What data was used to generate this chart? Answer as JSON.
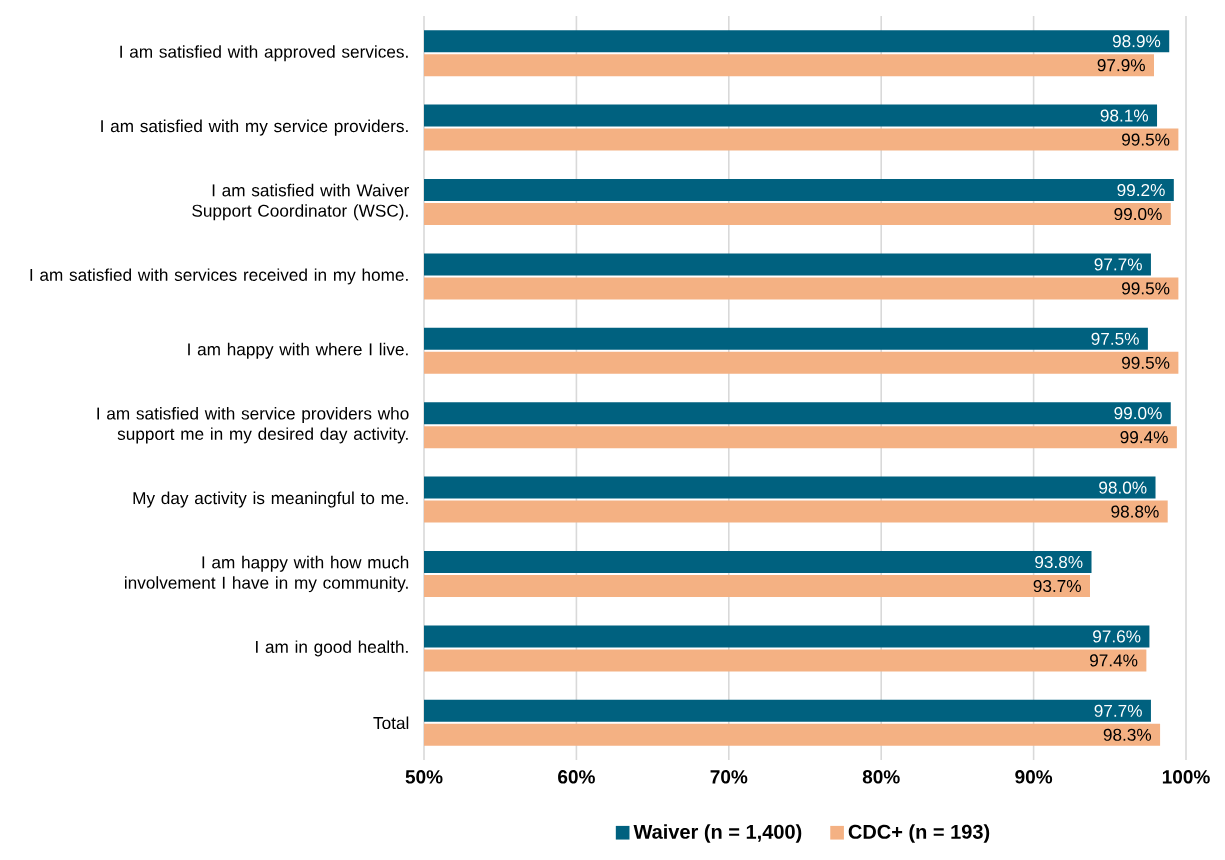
{
  "chart_data": {
    "type": "bar",
    "orientation": "horizontal",
    "categories": [
      "I am satisfied with approved services.",
      "I am satisfied with my service providers.",
      "I am satisfied with Waiver Support Coordinator (WSC).",
      "I am satisfied with services received in my home.",
      "I am happy with where I live.",
      "I am satisfied with service providers who support me in my desired day activity.",
      "My day activity is meaningful to me.",
      "I am happy with how much involvement I have in my community.",
      "I am in good health.",
      "Total"
    ],
    "series": [
      {
        "name": "Waiver (n = 1,400)",
        "color": "#00617f",
        "values": [
          98.9,
          98.1,
          99.2,
          97.7,
          97.5,
          99.0,
          98.0,
          93.8,
          97.6,
          97.7
        ],
        "value_labels": [
          "98.9%",
          "98.1%",
          "99.2%",
          "97.7%",
          "97.5%",
          "99.0%",
          "98.0%",
          "93.8%",
          "97.6%",
          "97.7%"
        ]
      },
      {
        "name": "CDC+ (n = 193)",
        "color": "#f4b183",
        "values": [
          97.9,
          99.5,
          99.0,
          99.5,
          99.5,
          99.4,
          98.8,
          93.7,
          97.4,
          98.3
        ],
        "value_labels": [
          "97.9%",
          "99.5%",
          "99.0%",
          "99.5%",
          "99.5%",
          "99.4%",
          "98.8%",
          "93.7%",
          "97.4%",
          "98.3%"
        ]
      }
    ],
    "xlim": [
      50,
      100
    ],
    "xticks": [
      {
        "value": 50,
        "label": "50%"
      },
      {
        "value": 60,
        "label": "60%"
      },
      {
        "value": 70,
        "label": "70%"
      },
      {
        "value": 80,
        "label": "80%"
      },
      {
        "value": 90,
        "label": "90%"
      },
      {
        "value": 100,
        "label": "100%"
      }
    ],
    "grid": "x",
    "legend": "bottom"
  }
}
